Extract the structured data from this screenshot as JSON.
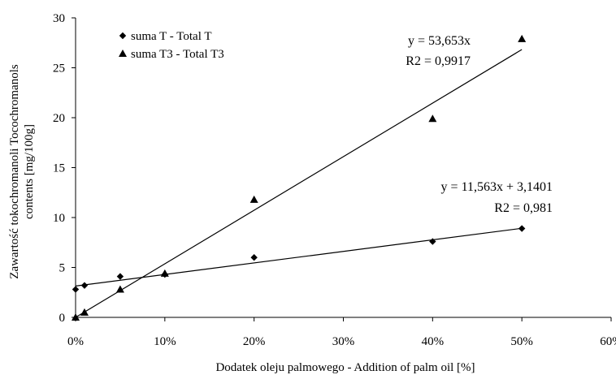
{
  "chart_data": {
    "type": "scatter",
    "xlabel": "Dodatek oleju palmowego - Addition of palm oil [%]",
    "ylabel": "Zawartość tokochromanoli Tocochromanols contents [mg/100g]",
    "ylabel_lines": [
      "Zawartość tokochromanoli Tocochromanols",
      "contents [mg/100g]"
    ],
    "xlim": [
      0,
      0.6
    ],
    "ylim": [
      0,
      30
    ],
    "x_ticks": [
      0,
      0.1,
      0.2,
      0.3,
      0.4,
      0.5,
      0.6
    ],
    "x_tick_labels": [
      "0%",
      "10%",
      "20%",
      "30%",
      "40%",
      "50%",
      "60%"
    ],
    "y_ticks": [
      0,
      5,
      10,
      15,
      20,
      25,
      30
    ],
    "y_tick_labels": [
      "0",
      "5",
      "10",
      "15",
      "20",
      "25",
      "30"
    ],
    "grid": false,
    "legend_position": "top-left",
    "series": [
      {
        "name": "suma T - Total T",
        "marker": "diamond",
        "x": [
          0,
          0.01,
          0.05,
          0.1,
          0.2,
          0.4,
          0.5
        ],
        "y": [
          2.8,
          3.2,
          4.1,
          4.3,
          6.0,
          7.6,
          8.9
        ],
        "trendline": {
          "slope": 11.563,
          "intercept": 3.1401,
          "x_range": [
            0,
            0.5
          ]
        },
        "equation": "y = 11,563x + 3,1401",
        "r2": "R2 = 0,981"
      },
      {
        "name": "suma T3 - Total T3",
        "marker": "triangle",
        "x": [
          0,
          0.01,
          0.05,
          0.1,
          0.2,
          0.4,
          0.5
        ],
        "y": [
          0.0,
          0.5,
          2.8,
          4.4,
          11.8,
          19.9,
          27.9
        ],
        "trendline": {
          "slope": 53.653,
          "intercept": 0,
          "x_range": [
            0,
            0.5
          ]
        },
        "equation": "y = 53,653x",
        "r2": "R2 = 0,9917"
      }
    ]
  }
}
